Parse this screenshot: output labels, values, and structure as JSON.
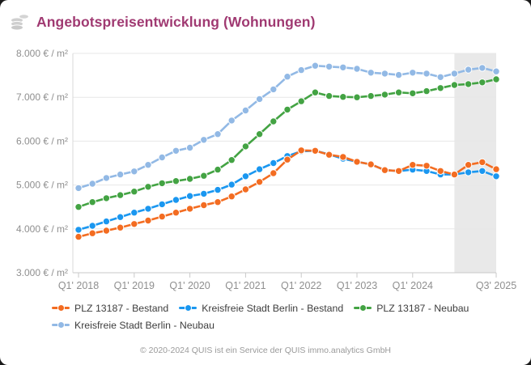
{
  "header": {
    "title": "Angebotspreisentwicklung (Wohnungen)",
    "title_color": "#a03a72",
    "icon": "coins-icon"
  },
  "footer": {
    "copyright": "© 2020-2024 QUIS ist ein Service der QUIS immo.analytics GmbH"
  },
  "colors": {
    "page_background": "#1a1a1a",
    "card_background": "#ffffff",
    "grid_line": "#e7e7e7",
    "axis_line": "#c9c9c9",
    "tick_label": "#8f8f8f",
    "legend_text": "#3d3d3d",
    "highlight_band": "#e9e9e9",
    "icon_gray": "#cfcfcf"
  },
  "chart_data": {
    "type": "line",
    "title": "Angebotspreisentwicklung (Wohnungen)",
    "unit": "€ / m²",
    "grid": "horizontal",
    "legend_position": "bottom-left",
    "ylim": [
      3000,
      8000
    ],
    "y_ticks": [
      {
        "value": 3000,
        "label": "3.000 € / m²"
      },
      {
        "value": 4000,
        "label": "4.000 € / m²"
      },
      {
        "value": 5000,
        "label": "5.000 € / m²"
      },
      {
        "value": 6000,
        "label": "6.000 € / m²"
      },
      {
        "value": 7000,
        "label": "7.000 € / m²"
      },
      {
        "value": 8000,
        "label": "8.000 € / m²"
      }
    ],
    "x_ticks": [
      {
        "index": 0,
        "label": "Q1' 2018"
      },
      {
        "index": 4,
        "label": "Q1' 2019"
      },
      {
        "index": 8,
        "label": "Q1' 2020"
      },
      {
        "index": 12,
        "label": "Q1' 2021"
      },
      {
        "index": 16,
        "label": "Q1' 2022"
      },
      {
        "index": 20,
        "label": "Q1' 2023"
      },
      {
        "index": 24,
        "label": "Q1' 2024"
      },
      {
        "index": 30,
        "label": "Q3' 2025"
      }
    ],
    "x": [
      "Q1 2018",
      "Q2 2018",
      "Q3 2018",
      "Q4 2018",
      "Q1 2019",
      "Q2 2019",
      "Q3 2019",
      "Q4 2019",
      "Q1 2020",
      "Q2 2020",
      "Q3 2020",
      "Q4 2020",
      "Q1 2021",
      "Q2 2021",
      "Q3 2021",
      "Q4 2021",
      "Q1 2022",
      "Q2 2022",
      "Q3 2022",
      "Q4 2022",
      "Q1 2023",
      "Q2 2023",
      "Q3 2023",
      "Q4 2023",
      "Q1 2024",
      "Q2 2024",
      "Q3 2024",
      "Q4 2024",
      "Q1 2025",
      "Q2 2025",
      "Q3 2025"
    ],
    "highlight_band": {
      "from_index": 27,
      "to_index": 30
    },
    "series": [
      {
        "name": "PLZ 13187 - Bestand",
        "color": "#f36c21",
        "values": [
          3820,
          3900,
          3960,
          4030,
          4110,
          4190,
          4280,
          4370,
          4460,
          4540,
          4610,
          4740,
          4900,
          5070,
          5270,
          5580,
          5790,
          5780,
          5690,
          5640,
          5530,
          5470,
          5340,
          5320,
          5460,
          5440,
          5320,
          5240,
          5460,
          5520,
          5360
        ]
      },
      {
        "name": "Kreisfreie Stadt Berlin - Bestand",
        "color": "#1a97f0",
        "values": [
          3980,
          4070,
          4170,
          4270,
          4370,
          4460,
          4560,
          4660,
          4750,
          4800,
          4890,
          5010,
          5200,
          5360,
          5500,
          5660,
          5770,
          5780,
          5700,
          5600,
          5530,
          5470,
          5340,
          5320,
          5350,
          5320,
          5240,
          5240,
          5290,
          5320,
          5200
        ]
      },
      {
        "name": "PLZ 13187 - Neubau",
        "color": "#43a343",
        "values": [
          4500,
          4610,
          4700,
          4770,
          4850,
          4960,
          5040,
          5090,
          5140,
          5210,
          5350,
          5570,
          5880,
          6160,
          6450,
          6720,
          6910,
          7110,
          7030,
          7010,
          7000,
          7030,
          7060,
          7110,
          7090,
          7140,
          7210,
          7280,
          7300,
          7340,
          7410
        ]
      },
      {
        "name": "Kreisfreie Stadt Berlin - Neubau",
        "color": "#92b9e5",
        "values": [
          4930,
          5030,
          5160,
          5240,
          5310,
          5460,
          5630,
          5780,
          5850,
          6030,
          6160,
          6470,
          6700,
          6960,
          7180,
          7470,
          7620,
          7720,
          7700,
          7680,
          7650,
          7560,
          7540,
          7510,
          7560,
          7540,
          7460,
          7540,
          7630,
          7670,
          7590
        ]
      }
    ]
  }
}
